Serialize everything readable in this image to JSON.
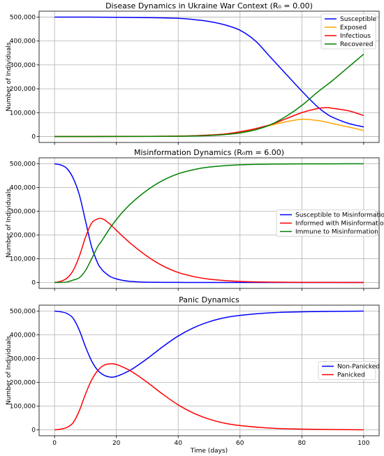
{
  "chart_data": [
    {
      "type": "line",
      "title": "Disease Dynamics in Ukraine War Context (R₀ = 0.00)",
      "xlabel": "",
      "ylabel": "Number of Individuals",
      "xlim": [
        -5,
        105
      ],
      "ylim": [
        -25000,
        525000
      ],
      "xticks": [
        0,
        20,
        40,
        60,
        80,
        100
      ],
      "xtick_labels": [
        "",
        "",
        "",
        "",
        "",
        ""
      ],
      "yticks": [
        0,
        100000,
        200000,
        300000,
        400000,
        500000
      ],
      "ytick_labels": [
        "0",
        "100,000",
        "200,000",
        "300,000",
        "400,000",
        "500,000"
      ],
      "grid": true,
      "legend_position": "top-right",
      "x": [
        0,
        10,
        20,
        30,
        40,
        45,
        50,
        55,
        60,
        65,
        70,
        75,
        80,
        85,
        88,
        90,
        95,
        100
      ],
      "series": [
        {
          "name": "Susceptible",
          "color": "#0000ff",
          "values": [
            500000,
            500000,
            499500,
            498000,
            495000,
            490000,
            482000,
            468000,
            445000,
            400000,
            330000,
            260000,
            190000,
            125000,
            95000,
            80000,
            55000,
            40000
          ]
        },
        {
          "name": "Exposed",
          "color": "#ffa500",
          "values": [
            0,
            0,
            200,
            600,
            1500,
            3000,
            6000,
            10000,
            18000,
            30000,
            47000,
            62000,
            72000,
            67000,
            60000,
            54000,
            40000,
            25000
          ]
        },
        {
          "name": "Infectious",
          "color": "#ff0000",
          "values": [
            0,
            0,
            200,
            600,
            1500,
            3000,
            6000,
            10000,
            20000,
            33000,
            50000,
            75000,
            100000,
            117000,
            121000,
            118000,
            108000,
            88000
          ]
        },
        {
          "name": "Recovered",
          "color": "#008000",
          "values": [
            0,
            0,
            100,
            300,
            1000,
            2000,
            4000,
            8000,
            15000,
            28000,
            50000,
            85000,
            130000,
            185000,
            215000,
            235000,
            290000,
            345000
          ]
        }
      ]
    },
    {
      "type": "line",
      "title": "Misinformation Dynamics (R₀m = 6.00)",
      "xlabel": "",
      "ylabel": "Number of Individuals",
      "xlim": [
        -5,
        105
      ],
      "ylim": [
        -25000,
        525000
      ],
      "xticks": [
        0,
        20,
        40,
        60,
        80,
        100
      ],
      "xtick_labels": [
        "",
        "",
        "",
        "",
        "",
        ""
      ],
      "yticks": [
        0,
        100000,
        200000,
        300000,
        400000,
        500000
      ],
      "ytick_labels": [
        "0",
        "100,000",
        "200,000",
        "300,000",
        "400,000",
        "500,000"
      ],
      "grid": true,
      "legend_position": "center-right",
      "x": [
        0,
        2,
        4,
        6,
        8,
        10,
        12,
        14,
        15,
        16,
        18,
        20,
        22,
        25,
        30,
        35,
        40,
        45,
        50,
        60,
        70,
        80,
        90,
        100
      ],
      "series": [
        {
          "name": "Susceptible to Misinformation",
          "color": "#0000ff",
          "values": [
            500000,
            495000,
            480000,
            440000,
            370000,
            260000,
            150000,
            80000,
            60000,
            45000,
            25000,
            15000,
            9000,
            4000,
            1000,
            500,
            200,
            100,
            0,
            0,
            0,
            0,
            0,
            0
          ]
        },
        {
          "name": "Informed with Misinformation",
          "color": "#ff0000",
          "values": [
            0,
            5000,
            18000,
            50000,
            110000,
            190000,
            250000,
            268000,
            270000,
            265000,
            245000,
            220000,
            195000,
            160000,
            110000,
            70000,
            42000,
            25000,
            14000,
            4500,
            1500,
            500,
            200,
            0
          ]
        },
        {
          "name": "Immune to Misinformation",
          "color": "#008000",
          "values": [
            0,
            200,
            2000,
            10000,
            20000,
            50000,
            100000,
            152000,
            170000,
            190000,
            230000,
            265000,
            296000,
            336000,
            389000,
            429500,
            457800,
            474900,
            486000,
            495500,
            498500,
            499500,
            499800,
            500000
          ]
        }
      ]
    },
    {
      "type": "line",
      "title": "Panic Dynamics",
      "xlabel": "Time (days)",
      "ylabel": "Number of Individuals",
      "xlim": [
        -5,
        105
      ],
      "ylim": [
        -25000,
        525000
      ],
      "xticks": [
        0,
        20,
        40,
        60,
        80,
        100
      ],
      "xtick_labels": [
        "0",
        "20",
        "40",
        "60",
        "80",
        "100"
      ],
      "yticks": [
        0,
        100000,
        200000,
        300000,
        400000,
        500000
      ],
      "ytick_labels": [
        "0",
        "100,000",
        "200,000",
        "300,000",
        "400,000",
        "500,000"
      ],
      "grid": true,
      "legend_position": "center-right",
      "x": [
        0,
        2,
        4,
        6,
        8,
        10,
        12,
        14,
        16,
        18,
        19,
        20,
        22,
        25,
        30,
        35,
        40,
        45,
        50,
        55,
        60,
        70,
        80,
        90,
        100
      ],
      "series": [
        {
          "name": "Non-Panicked",
          "color": "#0000ff",
          "values": [
            500000,
            497000,
            490000,
            470000,
            420000,
            350000,
            290000,
            250000,
            230000,
            222000,
            222000,
            225000,
            235000,
            255000,
            300000,
            350000,
            395000,
            430000,
            455000,
            472000,
            482000,
            493000,
            497000,
            499000,
            500000
          ]
        },
        {
          "name": "Panicked",
          "color": "#ff0000",
          "values": [
            0,
            3000,
            10000,
            30000,
            80000,
            150000,
            210000,
            250000,
            272000,
            278000,
            278000,
            275000,
            265000,
            245000,
            200000,
            150000,
            105000,
            70000,
            45000,
            28000,
            18000,
            7000,
            3000,
            1000,
            0
          ]
        }
      ]
    }
  ]
}
